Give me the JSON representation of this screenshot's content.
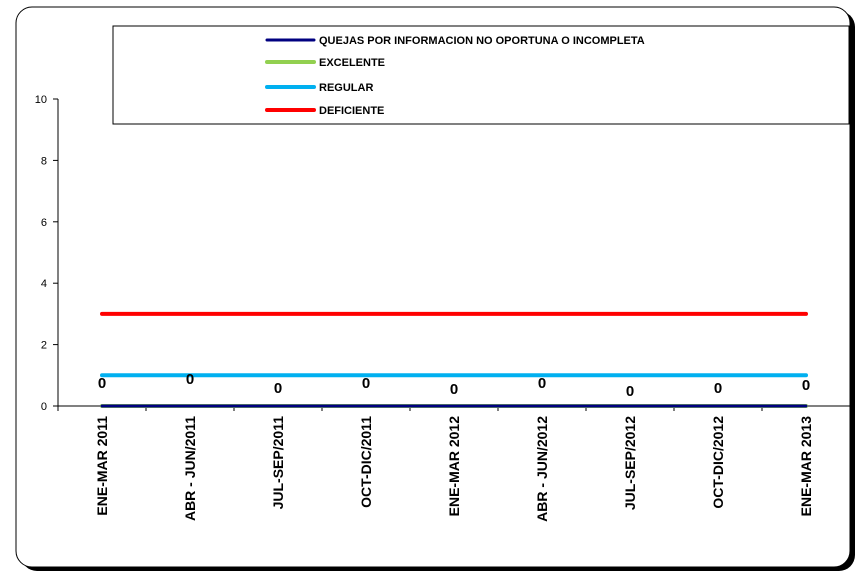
{
  "chart_data": {
    "type": "line",
    "categories": [
      "ENE-MAR 2011",
      "ABR - JUN/2011",
      "JUL-SEP/2011",
      "OCT-DIC/2011",
      "ENE-MAR 2012",
      "ABR - JUN/2012",
      "JUL-SEP/2012",
      "OCT-DIC/2012",
      "ENE-MAR 2013"
    ],
    "series": [
      {
        "name": "QUEJAS POR INFORMACION NO OPORTUNA O INCOMPLETA",
        "color": "#000080",
        "values": [
          0,
          0,
          0,
          0,
          0,
          0,
          0,
          0,
          0
        ]
      },
      {
        "name": "EXCELENTE",
        "color": "#92D050",
        "values": [
          0,
          0,
          0,
          0,
          0,
          0,
          0,
          0,
          0
        ]
      },
      {
        "name": "REGULAR",
        "color": "#00B0F0",
        "values": [
          1,
          1,
          1,
          1,
          1,
          1,
          1,
          1,
          1
        ]
      },
      {
        "name": "DEFICIENTE",
        "color": "#FF0000",
        "values": [
          3,
          3,
          3,
          3,
          3,
          3,
          3,
          3,
          3
        ]
      }
    ],
    "data_labels": [
      "0",
      "0",
      "0",
      "0",
      "0",
      "0",
      "0",
      "0",
      "0"
    ],
    "yticks": [
      "0",
      "2",
      "4",
      "6",
      "8",
      "10"
    ],
    "ylim": [
      0,
      10
    ],
    "grid": false,
    "legend_position": "top"
  }
}
